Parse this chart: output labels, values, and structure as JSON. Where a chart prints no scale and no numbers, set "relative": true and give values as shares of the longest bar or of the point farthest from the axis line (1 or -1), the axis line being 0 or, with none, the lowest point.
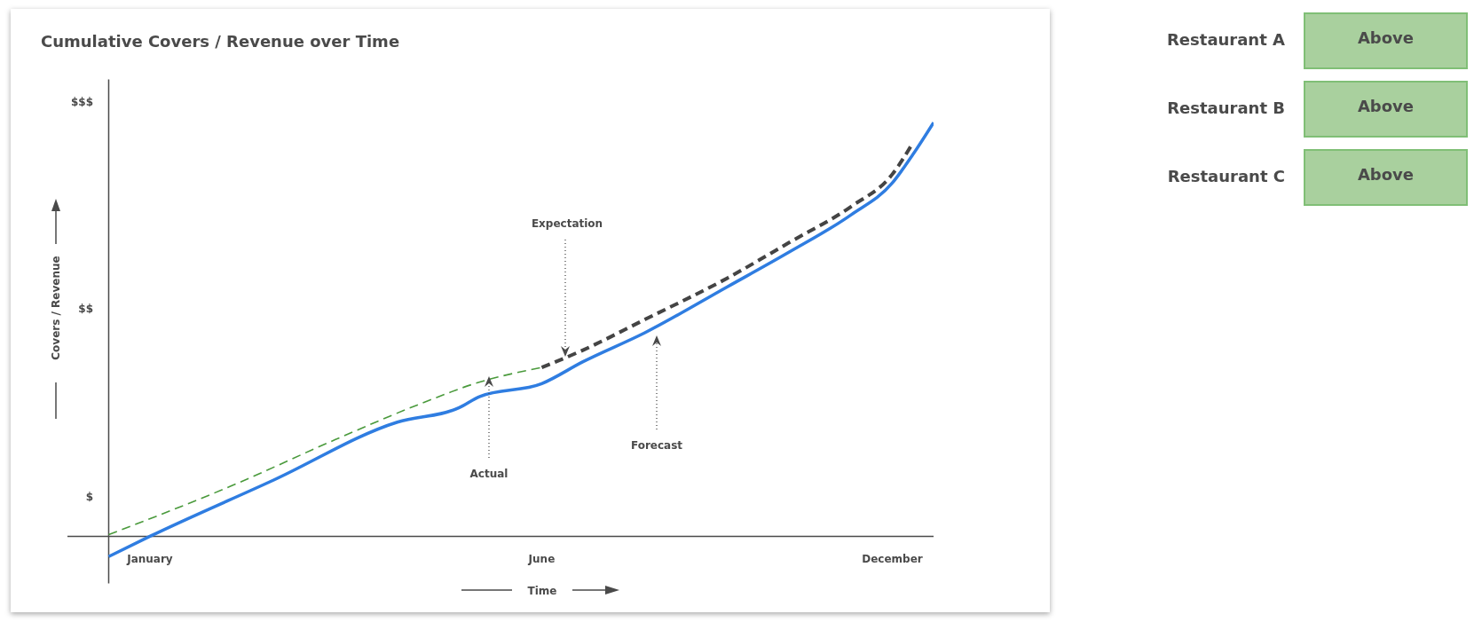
{
  "chart_data": [
    {
      "type": "line",
      "title": "Cumulative Covers / Revenue over Time",
      "xlabel": "Time",
      "ylabel": "Covers / Revenue",
      "relative": true,
      "categories": [
        null,
        null,
        "January",
        null,
        null,
        null,
        null,
        null,
        null,
        null,
        null,
        null,
        null,
        null,
        null,
        null,
        null,
        null,
        null,
        null,
        null,
        "June",
        null,
        null,
        null,
        null,
        null,
        null,
        null,
        null,
        null,
        null,
        null,
        null,
        null,
        null,
        null,
        null,
        "December",
        null,
        null
      ],
      "series": [
        {
          "color": "#4a9a3c",
          "line_style": "dashed",
          "values": [
            0.004,
            null,
            null,
            null,
            null,
            null,
            0.123,
            null,
            null,
            null,
            null,
            0.234,
            null,
            null,
            null,
            0.318,
            null,
            null,
            0.373,
            null,
            null,
            0.408,
            null,
            null,
            null,
            null,
            null,
            null,
            null,
            null,
            null,
            null,
            null,
            null,
            null,
            null,
            null,
            null,
            null,
            null,
            null
          ]
        },
        {
          "color": "#444444",
          "line_style": "dashed",
          "values": [
            null,
            null,
            null,
            null,
            null,
            null,
            null,
            null,
            null,
            null,
            null,
            null,
            null,
            null,
            null,
            null,
            null,
            null,
            null,
            null,
            null,
            0.408,
            null,
            0.45,
            null,
            null,
            0.524,
            null,
            null,
            null,
            0.624,
            null,
            null,
            0.71,
            null,
            null,
            0.797,
            null,
            0.875,
            0.951,
            null
          ]
        },
        {
          "color": "#2f7de1",
          "line_style": "solid",
          "values": [
            -0.049,
            null,
            0,
            null,
            null,
            null,
            null,
            null,
            0.136,
            null,
            null,
            null,
            null,
            null,
            0.276,
            null,
            null,
            0.311,
            0.338,
            null,
            null,
            0.369,
            null,
            0.422,
            null,
            null,
            0.492,
            null,
            null,
            null,
            0.603,
            null,
            null,
            0.687,
            null,
            null,
            0.777,
            null,
            0.854,
            0.923,
            1
          ]
        }
      ],
      "annotations": [
        "Expectation",
        "Actual",
        "Forecast",
        "$$$",
        "$$",
        "$"
      ]
    },
    {
      "type": "other",
      "categories": [
        "Restaurant A",
        "Restaurant B",
        "Restaurant C"
      ],
      "value_labels": [
        "Above",
        "Above",
        "Above"
      ],
      "color": "#a9d09e"
    }
  ]
}
